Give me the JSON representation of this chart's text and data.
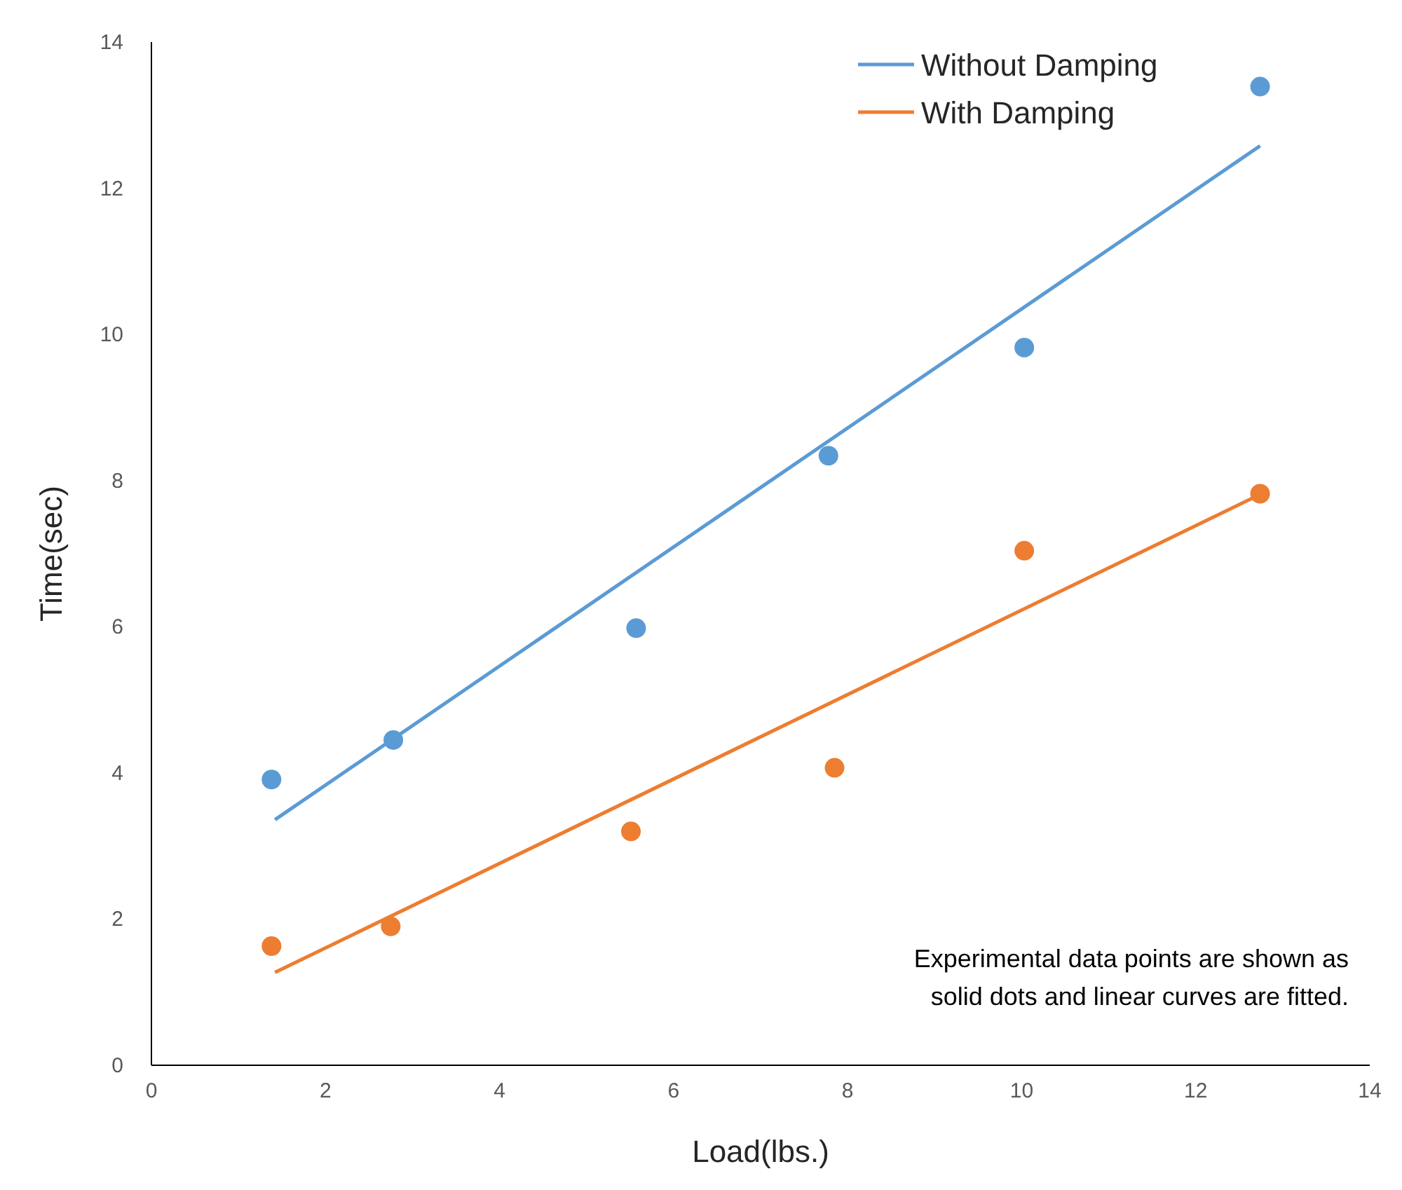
{
  "chart_data": {
    "type": "scatter",
    "xlabel": "Load(lbs.)",
    "ylabel": "Time(sec)",
    "xlim": [
      0,
      14
    ],
    "ylim": [
      0,
      14
    ],
    "xticks": [
      0,
      2,
      4,
      6,
      8,
      10,
      12,
      14
    ],
    "yticks": [
      0,
      2,
      4,
      6,
      8,
      10,
      12,
      14
    ],
    "grid": false,
    "legend": "top right",
    "annotations": [
      "Experimental data points are shown as solid dots and linear curves are fitted."
    ],
    "series": [
      {
        "marker": "circle",
        "color": "#5b9bd5",
        "x": [
          1.38,
          2.78,
          5.57,
          7.78,
          10.03,
          12.74
        ],
        "values": [
          3.91,
          4.45,
          5.98,
          8.34,
          9.82,
          13.39
        ]
      },
      {
        "marker": "circle",
        "color": "#ed7d31",
        "x": [
          1.38,
          2.75,
          5.51,
          7.85,
          10.03,
          12.74
        ],
        "values": [
          1.63,
          1.9,
          3.2,
          4.07,
          7.04,
          7.82
        ]
      },
      {
        "type": "line",
        "name": "Without Damping",
        "color": "#5b9bd5",
        "line_style": "solid",
        "x": [
          1.42,
          12.74
        ],
        "values": [
          3.36,
          12.58
        ]
      },
      {
        "type": "line",
        "name": "With Damping",
        "color": "#ed7d31",
        "line_style": "solid",
        "x": [
          1.42,
          12.74
        ],
        "values": [
          1.27,
          7.81
        ]
      }
    ]
  }
}
